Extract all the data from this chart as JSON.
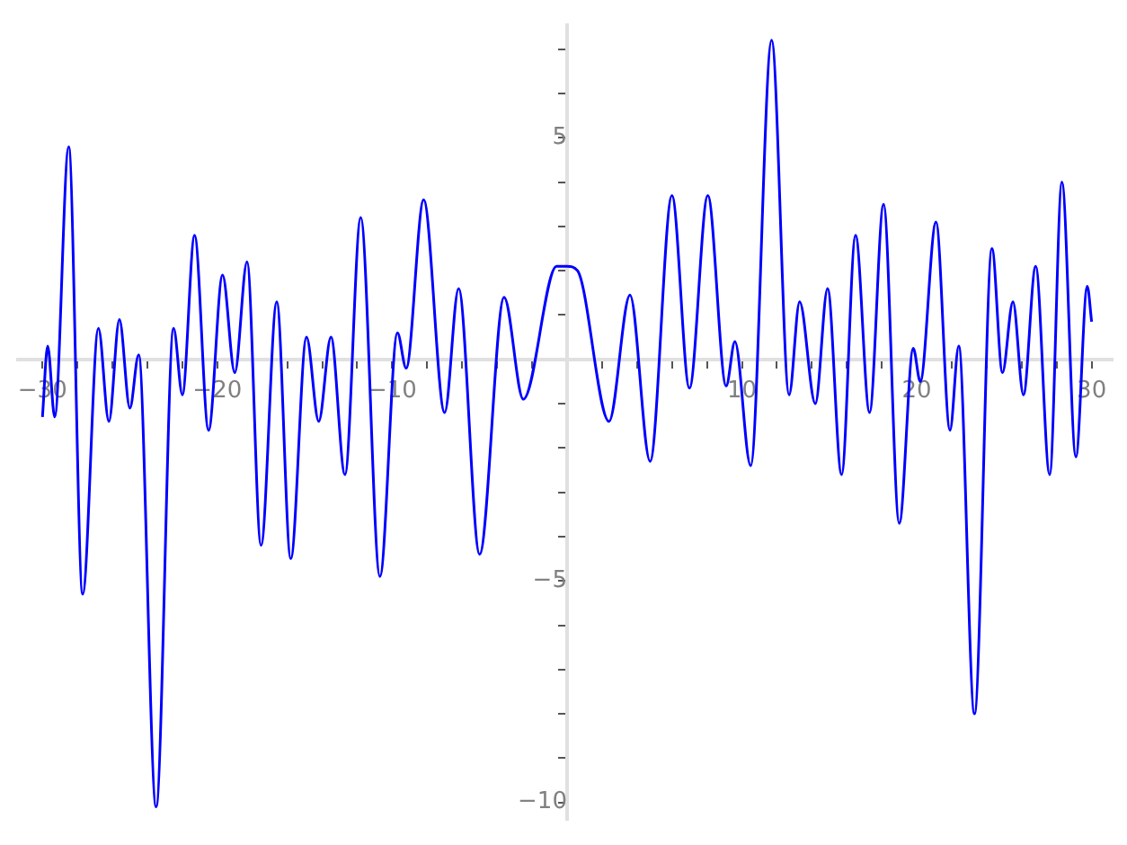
{
  "chart_data": {
    "type": "line",
    "xlim": [
      -31.4,
      31.2
    ],
    "ylim": [
      -10.4,
      7.55
    ],
    "xticks": [
      -30,
      {
        "value": -28,
        "label": null
      },
      {
        "value": -26,
        "label": null
      },
      {
        "value": -24,
        "label": null
      },
      {
        "value": -22,
        "label": null
      },
      -20,
      {
        "value": -18,
        "label": null
      },
      {
        "value": -16,
        "label": null
      },
      {
        "value": -14,
        "label": null
      },
      {
        "value": -12,
        "label": null
      },
      -10,
      {
        "value": -8,
        "label": null
      },
      {
        "value": -6,
        "label": null
      },
      {
        "value": -4,
        "label": null
      },
      {
        "value": -2,
        "label": null
      },
      {
        "value": 2,
        "label": null
      },
      {
        "value": 4,
        "label": null
      },
      {
        "value": 6,
        "label": null
      },
      {
        "value": 8,
        "label": null
      },
      10,
      {
        "value": 12,
        "label": null
      },
      {
        "value": 14,
        "label": null
      },
      {
        "value": 16,
        "label": null
      },
      {
        "value": 18,
        "label": null
      },
      20,
      {
        "value": 22,
        "label": null
      },
      {
        "value": 24,
        "label": null
      },
      {
        "value": 26,
        "label": null
      },
      {
        "value": 28,
        "label": null
      },
      30
    ],
    "yticks": [
      -10,
      {
        "value": -9,
        "label": null
      },
      {
        "value": -8,
        "label": null
      },
      {
        "value": -7,
        "label": null
      },
      {
        "value": -6,
        "label": null
      },
      -5,
      {
        "value": -4,
        "label": null
      },
      {
        "value": -3,
        "label": null
      },
      {
        "value": -2,
        "label": null
      },
      {
        "value": -1,
        "label": null
      },
      {
        "value": 1,
        "label": null
      },
      {
        "value": 2,
        "label": null
      },
      {
        "value": 3,
        "label": null
      },
      {
        "value": 4,
        "label": null
      },
      5,
      {
        "value": 6,
        "label": null
      },
      {
        "value": 7,
        "label": null
      }
    ],
    "grid": false,
    "legend": false,
    "marker": "none",
    "line_style": "solid",
    "series": [
      {
        "color": "#0000ff",
        "x": [
          -30,
          -29.7,
          -29.3,
          -28.5,
          -27.7,
          -26.8,
          -26.2,
          -25.6,
          -25.0,
          -24.5,
          -23.5,
          -22.5,
          -22.0,
          -21.3,
          -20.5,
          -19.7,
          -19.0,
          -18.3,
          -17.5,
          -16.6,
          -15.8,
          -14.9,
          -14.2,
          -13.5,
          -12.7,
          -11.8,
          -10.7,
          -9.7,
          -9.2,
          -8.2,
          -7.0,
          -6.2,
          -5.0,
          -3.6,
          -2.5,
          -0.6,
          0,
          0.6,
          2.4,
          3.6,
          4.75,
          6.0,
          7.0,
          8.05,
          9.1,
          9.6,
          10.5,
          11.7,
          12.7,
          13.3,
          14.2,
          14.9,
          15.7,
          16.5,
          17.3,
          18.1,
          19.0,
          19.8,
          20.2,
          21.1,
          21.9,
          22.4,
          23.3,
          24.3,
          24.9,
          25.5,
          26.1,
          26.8,
          27.6,
          28.3,
          29.1,
          29.75,
          30
        ],
        "values": [
          -1.3,
          0.3,
          -1.3,
          4.8,
          -5.3,
          0.7,
          -1.4,
          0.9,
          -1.1,
          0.1,
          -10.1,
          0.7,
          -0.8,
          2.8,
          -1.6,
          1.9,
          -0.3,
          2.2,
          -4.2,
          1.3,
          -4.5,
          0.5,
          -1.4,
          0.5,
          -2.6,
          3.2,
          -4.9,
          0.6,
          -0.2,
          3.6,
          -1.2,
          1.6,
          -4.4,
          1.4,
          -0.9,
          2.1,
          2.1,
          2.0,
          -1.4,
          1.45,
          -2.3,
          3.7,
          -0.65,
          3.7,
          -0.6,
          0.4,
          -2.4,
          7.2,
          -0.8,
          1.3,
          -1.0,
          1.6,
          -2.6,
          2.8,
          -1.2,
          3.5,
          -3.7,
          0.25,
          -0.5,
          3.1,
          -1.6,
          0.3,
          -8.0,
          2.5,
          -0.3,
          1.3,
          -0.8,
          2.1,
          -2.6,
          4.0,
          -2.2,
          1.65,
          0.85
        ]
      }
    ]
  }
}
